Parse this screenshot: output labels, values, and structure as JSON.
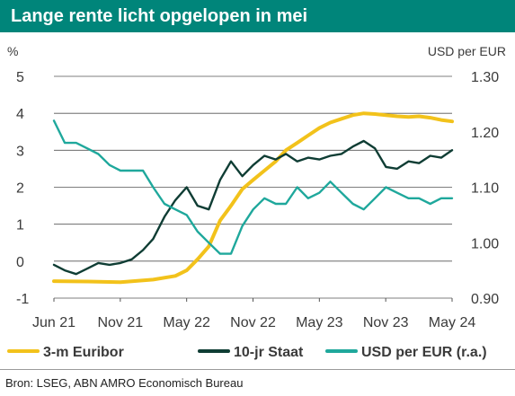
{
  "header": {
    "title": "Lange rente licht opgelopen in mei"
  },
  "footer": {
    "source": "Bron: LSEG, ABN AMRO Economisch Bureau"
  },
  "colors": {
    "euribor": "#f2c21b",
    "staat": "#0f3d34",
    "usd": "#1fa89c",
    "title_bg": "#00857a",
    "grid": "#555555"
  },
  "chart_data": {
    "type": "line",
    "left_unit_label": "%",
    "right_unit_label": "USD per EUR",
    "x_tick_labels": [
      "Jun 21",
      "Nov 21",
      "May 22",
      "Nov 22",
      "May 23",
      "Nov 23",
      "May 24"
    ],
    "xlim": [
      "2021-06-01",
      "2024-05-31"
    ],
    "y_left": {
      "ylim": [
        -1,
        5
      ],
      "ticks": [
        -1,
        0,
        1,
        2,
        3,
        4,
        5
      ]
    },
    "y_right": {
      "ylim": [
        0.9,
        1.3
      ],
      "ticks": [
        "0.90",
        "1.00",
        "1.10",
        "1.20",
        "1.30"
      ]
    },
    "grid": "horizontal",
    "legend_position": "bottom",
    "series": [
      {
        "name": "3-m Euribor",
        "axis": "left",
        "color": "#f2c21b",
        "x": [
          "2021-06-01",
          "2021-09-01",
          "2021-12-01",
          "2022-03-01",
          "2022-05-01",
          "2022-06-01",
          "2022-07-01",
          "2022-08-01",
          "2022-09-01",
          "2022-10-01",
          "2022-11-01",
          "2022-12-01",
          "2023-01-01",
          "2023-02-01",
          "2023-03-01",
          "2023-04-01",
          "2023-05-01",
          "2023-06-01",
          "2023-07-01",
          "2023-08-01",
          "2023-09-01",
          "2023-10-01",
          "2023-11-01",
          "2023-12-01",
          "2024-01-01",
          "2024-02-01",
          "2024-03-01",
          "2024-04-01",
          "2024-05-01",
          "2024-05-31"
        ],
        "y": [
          -0.54,
          -0.55,
          -0.57,
          -0.5,
          -0.4,
          -0.25,
          0.05,
          0.4,
          1.1,
          1.5,
          1.95,
          2.2,
          2.45,
          2.7,
          3.0,
          3.2,
          3.4,
          3.6,
          3.75,
          3.85,
          3.95,
          4.0,
          3.98,
          3.95,
          3.92,
          3.9,
          3.92,
          3.88,
          3.82,
          3.78
        ]
      },
      {
        "name": "10-jr Staat",
        "axis": "left",
        "color": "#0f3d34",
        "x": [
          "2021-06-01",
          "2021-07-01",
          "2021-08-01",
          "2021-09-01",
          "2021-10-01",
          "2021-11-01",
          "2021-12-01",
          "2022-01-01",
          "2022-02-01",
          "2022-03-01",
          "2022-04-01",
          "2022-05-01",
          "2022-06-01",
          "2022-07-01",
          "2022-08-01",
          "2022-09-01",
          "2022-10-01",
          "2022-11-01",
          "2022-12-01",
          "2023-01-01",
          "2023-02-01",
          "2023-03-01",
          "2023-04-01",
          "2023-05-01",
          "2023-06-01",
          "2023-07-01",
          "2023-08-01",
          "2023-09-01",
          "2023-10-01",
          "2023-11-01",
          "2023-12-01",
          "2024-01-01",
          "2024-02-01",
          "2024-03-01",
          "2024-04-01",
          "2024-05-01",
          "2024-05-31"
        ],
        "y": [
          -0.1,
          -0.25,
          -0.35,
          -0.2,
          -0.05,
          -0.1,
          -0.05,
          0.05,
          0.3,
          0.6,
          1.2,
          1.65,
          2.0,
          1.5,
          1.4,
          2.2,
          2.7,
          2.3,
          2.6,
          2.85,
          2.75,
          2.9,
          2.7,
          2.8,
          2.75,
          2.85,
          2.9,
          3.1,
          3.25,
          3.05,
          2.55,
          2.5,
          2.7,
          2.65,
          2.85,
          2.8,
          3.0
        ]
      },
      {
        "name": "USD per EUR (r.a.)",
        "axis": "right",
        "color": "#1fa89c",
        "x": [
          "2021-06-01",
          "2021-07-01",
          "2021-08-01",
          "2021-09-01",
          "2021-10-01",
          "2021-11-01",
          "2021-12-01",
          "2022-01-01",
          "2022-02-01",
          "2022-03-01",
          "2022-04-01",
          "2022-05-01",
          "2022-06-01",
          "2022-07-01",
          "2022-08-01",
          "2022-09-01",
          "2022-10-01",
          "2022-11-01",
          "2022-12-01",
          "2023-01-01",
          "2023-02-01",
          "2023-03-01",
          "2023-04-01",
          "2023-05-01",
          "2023-06-01",
          "2023-07-01",
          "2023-08-01",
          "2023-09-01",
          "2023-10-01",
          "2023-11-01",
          "2023-12-01",
          "2024-01-01",
          "2024-02-01",
          "2024-03-01",
          "2024-04-01",
          "2024-05-01",
          "2024-05-31"
        ],
        "y": [
          1.22,
          1.18,
          1.18,
          1.17,
          1.16,
          1.14,
          1.13,
          1.13,
          1.13,
          1.1,
          1.07,
          1.06,
          1.05,
          1.02,
          1.0,
          0.98,
          0.98,
          1.03,
          1.06,
          1.08,
          1.07,
          1.07,
          1.1,
          1.08,
          1.09,
          1.11,
          1.09,
          1.07,
          1.06,
          1.08,
          1.1,
          1.09,
          1.08,
          1.08,
          1.07,
          1.08,
          1.08
        ]
      }
    ]
  }
}
